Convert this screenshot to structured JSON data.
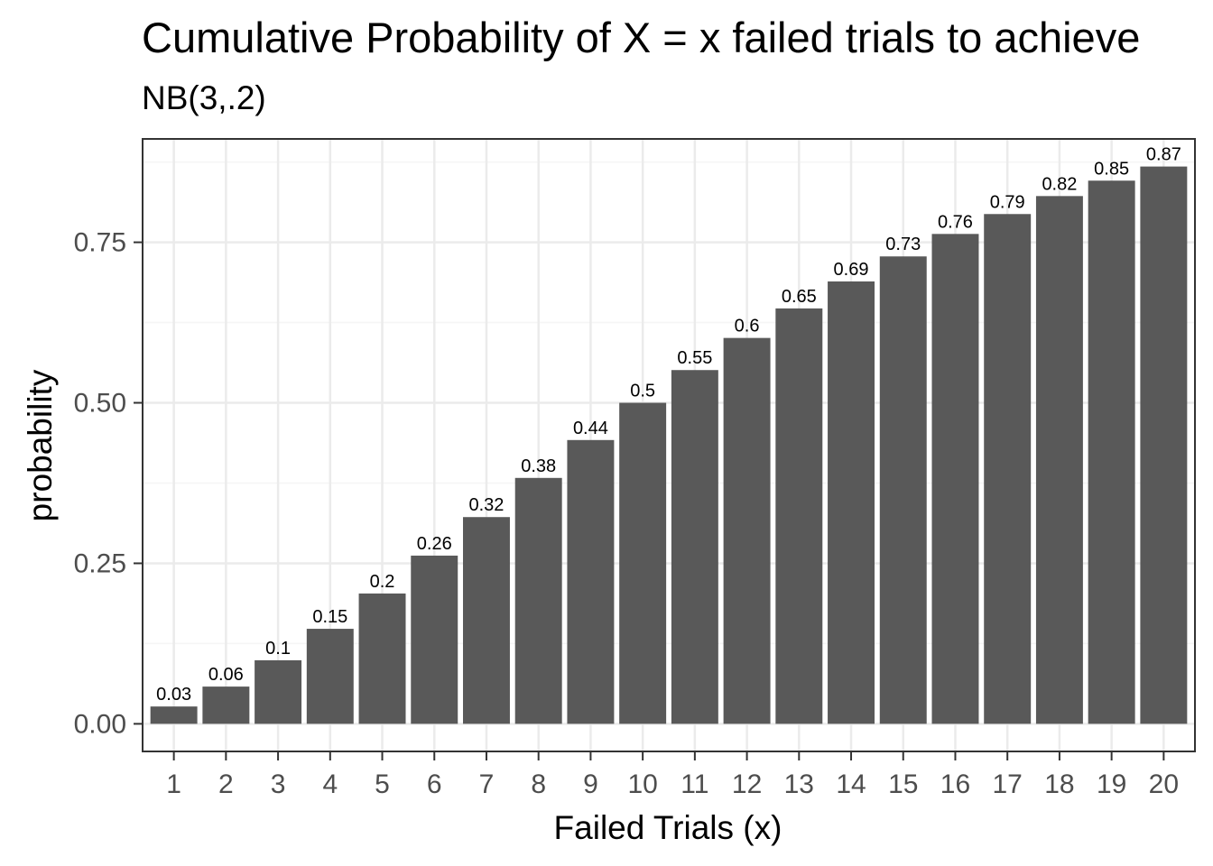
{
  "chart_data": {
    "type": "bar",
    "title": "Cumulative Probability of X = x failed trials to achieve",
    "subtitle": "NB(3,.2)",
    "xlabel": "Failed Trials (x)",
    "ylabel": "probability",
    "categories": [
      "1",
      "2",
      "3",
      "4",
      "5",
      "6",
      "7",
      "8",
      "9",
      "10",
      "11",
      "12",
      "13",
      "14",
      "15",
      "16",
      "17",
      "18",
      "19",
      "20"
    ],
    "values": [
      0.027,
      0.058,
      0.099,
      0.148,
      0.203,
      0.262,
      0.322,
      0.383,
      0.442,
      0.5,
      0.551,
      0.601,
      0.647,
      0.689,
      0.728,
      0.763,
      0.794,
      0.822,
      0.846,
      0.868
    ],
    "data_labels": [
      "0.03",
      "0.06",
      "0.1",
      "0.15",
      "0.2",
      "0.26",
      "0.32",
      "0.38",
      "0.44",
      "0.5",
      "0.55",
      "0.6",
      "0.65",
      "0.69",
      "0.73",
      "0.76",
      "0.79",
      "0.82",
      "0.85",
      "0.87"
    ],
    "y_ticks": [
      0,
      0.25,
      0.5,
      0.75
    ],
    "y_tick_labels": [
      "0.00",
      "0.25",
      "0.50",
      "0.75"
    ],
    "ylim": [
      -0.043,
      0.911
    ],
    "grid": true,
    "legend": "none",
    "colors": {
      "bar": "#595959",
      "panel_border": "#333333",
      "grid_major": "#ebebeb",
      "grid_minor": "#f5f5f5",
      "tick_text": "#4d4d4d",
      "background": "#ffffff"
    }
  }
}
